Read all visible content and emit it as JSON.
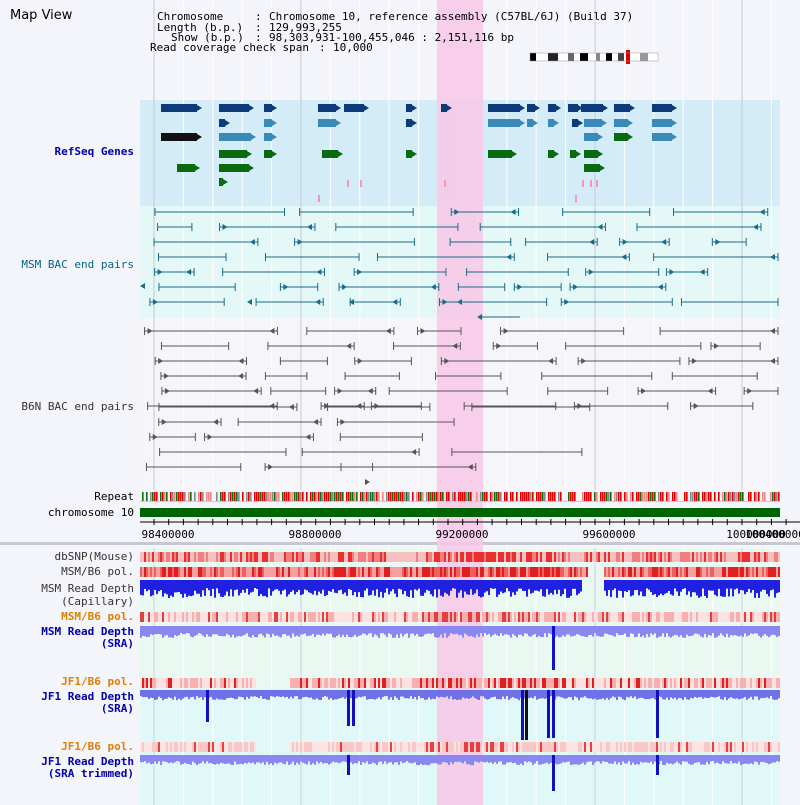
{
  "view_title": "Map View",
  "header": {
    "chromosome_label": "Chromosome",
    "chromosome_value": "Chromosome 10, reference assembly (C57BL/6J) (Build 37)",
    "length_label": "Length (b.p.)",
    "length_value": "129,993,255",
    "show_label": "Show (b.p.)",
    "show_value": "98,303,931-100,455,046 : 2,151,116 bp",
    "coverage_label": "Read coverage check span",
    "coverage_value": "10,000"
  },
  "tracks": {
    "refseq": "RefSeq Genes",
    "msm_bac": "MSM BAC end pairs",
    "b6n_bac": "B6N BAC end pairs",
    "repeat": "Repeat",
    "chromosome": "chromosome 10",
    "dbsnp": "dbSNP(Mouse)",
    "msm_b6_pol": "MSM/B6 pol.",
    "msm_depth_cap_1": "MSM Read Depth",
    "msm_depth_cap_2": "(Capillary)",
    "msm_b6_pol_2": "MSM/B6 pol.",
    "msm_depth_sra_1": "MSM Read Depth",
    "msm_depth_sra_2": "(SRA)",
    "jf1_b6_pol": "JF1/B6 pol.",
    "jf1_depth_sra_1": "JF1 Read Depth",
    "jf1_depth_sra_2": "(SRA)",
    "jf1_b6_pol_2": "JF1/B6 pol.",
    "jf1_depth_trim_1": "JF1 Read Depth",
    "jf1_depth_trim_2": "(SRA trimmed)"
  },
  "axis_ticks": [
    "98400000",
    "98800000",
    "99200000",
    "99600000",
    "100000000",
    "100400000"
  ],
  "colors": {
    "refseq_label": "#0000aa",
    "msm_bac_label": "#006688",
    "gene_dark": "#0d3a7a",
    "gene_mid": "#3a8ab8",
    "gene_green": "#0a6a10",
    "highlight": "#f8c8e8",
    "orange_label": "#e08000",
    "blue_label": "#0000aa",
    "chrom_bar": "#006400"
  }
}
